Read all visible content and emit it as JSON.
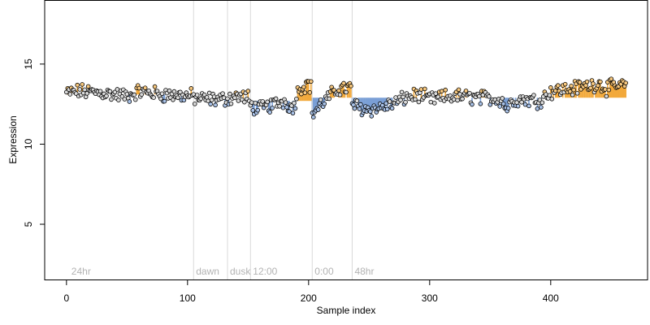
{
  "chart_data": {
    "type": "scatter",
    "title": "",
    "xlabel": "Sample index",
    "ylabel": "Expression",
    "xlim": [
      -18,
      480
    ],
    "ylim": [
      1.5,
      19
    ],
    "x_ticks": [
      0,
      100,
      200,
      300,
      400
    ],
    "y_ticks": [
      5,
      10,
      15
    ],
    "grid": false,
    "colors": {
      "point_edge": "#000000",
      "point_fill_neutral": "#d9d9d9",
      "positive": "#f2a93b",
      "negative": "#7a9fd6",
      "annotation_line": "#d9d9d9",
      "annotation_text": "#b3b3b3"
    },
    "annotations": [
      {
        "x": 2,
        "label": "24hr",
        "line": false
      },
      {
        "x": 105,
        "label": "dawn",
        "line": true
      },
      {
        "x": 133,
        "label": "dusk",
        "line": true
      },
      {
        "x": 152,
        "label": "12:00",
        "line": true
      },
      {
        "x": 203,
        "label": "0:00",
        "line": true
      },
      {
        "x": 236,
        "label": "48hr",
        "line": true
      }
    ],
    "baseline_segments": [
      {
        "x0": 0,
        "x1": 104,
        "y": 13.1
      },
      {
        "x0": 105,
        "x1": 151,
        "y": 12.85
      },
      {
        "x0": 152,
        "x1": 202,
        "y": 12.7
      },
      {
        "x0": 203,
        "x1": 235,
        "y": 12.9
      },
      {
        "x0": 236,
        "x1": 462,
        "y": 12.9
      }
    ],
    "knots": [
      [
        0,
        13.2
      ],
      [
        10,
        13.3
      ],
      [
        30,
        13.2
      ],
      [
        50,
        13.0
      ],
      [
        60,
        13.3
      ],
      [
        80,
        13.1
      ],
      [
        104,
        13.0
      ],
      [
        105,
        12.9
      ],
      [
        115,
        12.8
      ],
      [
        130,
        12.8
      ],
      [
        140,
        13.0
      ],
      [
        150,
        12.9
      ],
      [
        152,
        12.4
      ],
      [
        160,
        12.2
      ],
      [
        172,
        12.5
      ],
      [
        180,
        12.7
      ],
      [
        187,
        12.2
      ],
      [
        192,
        13.5
      ],
      [
        200,
        13.8
      ],
      [
        202,
        13.5
      ],
      [
        203,
        11.9
      ],
      [
        212,
        12.6
      ],
      [
        225,
        13.5
      ],
      [
        235,
        13.5
      ],
      [
        236,
        12.5
      ],
      [
        245,
        12.2
      ],
      [
        255,
        12.2
      ],
      [
        270,
        12.5
      ],
      [
        280,
        12.9
      ],
      [
        290,
        13.1
      ],
      [
        300,
        12.8
      ],
      [
        320,
        13.0
      ],
      [
        340,
        12.9
      ],
      [
        360,
        12.8
      ],
      [
        363,
        12.2
      ],
      [
        370,
        12.8
      ],
      [
        380,
        12.8
      ],
      [
        390,
        12.7
      ],
      [
        400,
        13.3
      ],
      [
        420,
        13.5
      ],
      [
        440,
        13.8
      ],
      [
        445,
        13.5
      ],
      [
        462,
        13.7
      ]
    ],
    "n_points": 463
  }
}
